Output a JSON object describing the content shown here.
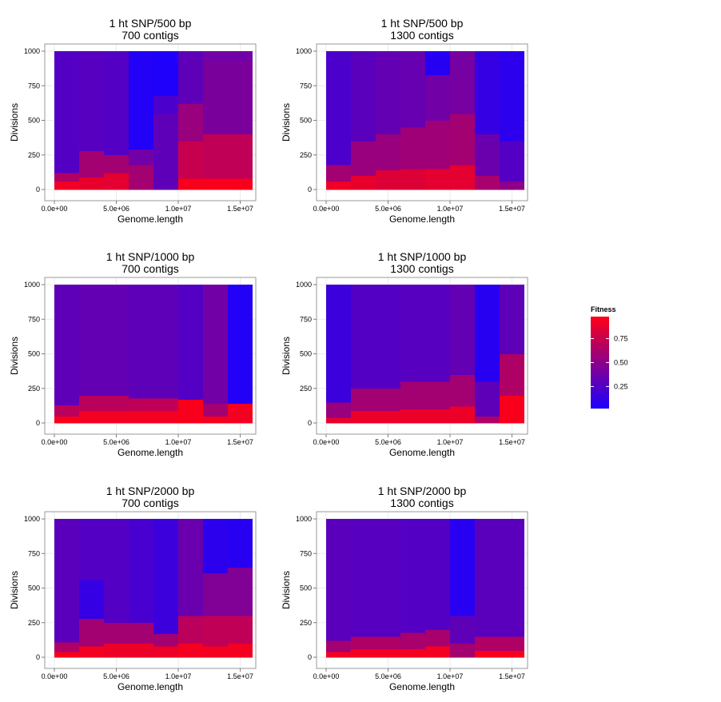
{
  "chart_data": [
    {
      "type": "heatmap",
      "title": [
        "1 ht SNP/500 bp",
        "700 contigs"
      ],
      "xlabel": "Genome.length",
      "ylabel": "Divisions",
      "xlim": [
        0,
        16000000
      ],
      "ylim": [
        0,
        1000
      ],
      "xticks": [
        0,
        5000000,
        10000000,
        15000000
      ],
      "xtick_labels": [
        "0.0e+00",
        "5.0e+06",
        "1.0e+07",
        "1.5e+07"
      ],
      "yticks": [
        0,
        250,
        500,
        750,
        1000
      ],
      "ytick_labels": [
        "0",
        "250",
        "500",
        "750",
        "1000"
      ],
      "columns": [
        {
          "x0": 0,
          "x1": 2000000,
          "segments": [
            [
              0,
              60,
              0.93
            ],
            [
              60,
              120,
              0.65
            ],
            [
              120,
              1000,
              0.25
            ]
          ]
        },
        {
          "x0": 2000000,
          "x1": 4000000,
          "segments": [
            [
              0,
              90,
              0.9
            ],
            [
              90,
              280,
              0.6
            ],
            [
              280,
              1000,
              0.27
            ]
          ]
        },
        {
          "x0": 4000000,
          "x1": 6000000,
          "segments": [
            [
              0,
              120,
              0.88
            ],
            [
              120,
              250,
              0.6
            ],
            [
              250,
              1000,
              0.25
            ]
          ]
        },
        {
          "x0": 6000000,
          "x1": 8000000,
          "segments": [
            [
              0,
              180,
              0.6
            ],
            [
              180,
              290,
              0.38
            ],
            [
              290,
              1000,
              0.04
            ]
          ]
        },
        {
          "x0": 8000000,
          "x1": 10000000,
          "segments": [
            [
              0,
              550,
              0.3
            ],
            [
              550,
              680,
              0.22
            ],
            [
              680,
              1000,
              0.02
            ]
          ]
        },
        {
          "x0": 10000000,
          "x1": 12000000,
          "segments": [
            [
              0,
              80,
              0.97
            ],
            [
              80,
              350,
              0.75
            ],
            [
              350,
              620,
              0.55
            ],
            [
              620,
              1000,
              0.3
            ]
          ]
        },
        {
          "x0": 12000000,
          "x1": 16000000,
          "segments": [
            [
              0,
              80,
              0.97
            ],
            [
              80,
              400,
              0.72
            ],
            [
              400,
              930,
              0.42
            ],
            [
              930,
              1000,
              0.38
            ]
          ]
        }
      ]
    },
    {
      "type": "heatmap",
      "title": [
        "1 ht SNP/500 bp",
        "1300 contigs"
      ],
      "xlabel": "Genome.length",
      "ylabel": "Divisions",
      "xlim": [
        0,
        16000000
      ],
      "ylim": [
        0,
        1000
      ],
      "xticks": [
        0,
        5000000,
        10000000,
        15000000
      ],
      "xtick_labels": [
        "0.0e+00",
        "5.0e+06",
        "1.0e+07",
        "1.5e+07"
      ],
      "yticks": [
        0,
        250,
        500,
        750,
        1000
      ],
      "ytick_labels": [
        "0",
        "250",
        "500",
        "750",
        "1000"
      ],
      "columns": [
        {
          "x0": 0,
          "x1": 2000000,
          "segments": [
            [
              0,
              60,
              0.93
            ],
            [
              60,
              180,
              0.6
            ],
            [
              180,
              1000,
              0.22
            ]
          ]
        },
        {
          "x0": 2000000,
          "x1": 4000000,
          "segments": [
            [
              0,
              100,
              0.9
            ],
            [
              100,
              350,
              0.55
            ],
            [
              350,
              1000,
              0.28
            ]
          ]
        },
        {
          "x0": 4000000,
          "x1": 6000000,
          "segments": [
            [
              0,
              140,
              0.85
            ],
            [
              140,
              400,
              0.55
            ],
            [
              400,
              1000,
              0.32
            ]
          ]
        },
        {
          "x0": 6000000,
          "x1": 8000000,
          "segments": [
            [
              0,
              150,
              0.85
            ],
            [
              150,
              450,
              0.58
            ],
            [
              450,
              1000,
              0.33
            ]
          ]
        },
        {
          "x0": 8000000,
          "x1": 10000000,
          "segments": [
            [
              0,
              150,
              0.88
            ],
            [
              150,
              500,
              0.58
            ],
            [
              500,
              830,
              0.38
            ],
            [
              830,
              1000,
              0.05
            ]
          ]
        },
        {
          "x0": 10000000,
          "x1": 12000000,
          "segments": [
            [
              0,
              180,
              0.88
            ],
            [
              180,
              550,
              0.6
            ],
            [
              550,
              1000,
              0.4
            ]
          ]
        },
        {
          "x0": 12000000,
          "x1": 14000000,
          "segments": [
            [
              0,
              100,
              0.62
            ],
            [
              100,
              400,
              0.35
            ],
            [
              400,
              1000,
              0.12
            ]
          ]
        },
        {
          "x0": 14000000,
          "x1": 16000000,
          "segments": [
            [
              0,
              60,
              0.5
            ],
            [
              60,
              350,
              0.25
            ],
            [
              350,
              1000,
              0.08
            ]
          ]
        }
      ]
    },
    {
      "type": "heatmap",
      "title": [
        "1 ht SNP/1000 bp",
        "700 contigs"
      ],
      "xlabel": "Genome.length",
      "ylabel": "Divisions",
      "xlim": [
        0,
        16000000
      ],
      "ylim": [
        0,
        1000
      ],
      "xticks": [
        0,
        5000000,
        10000000,
        15000000
      ],
      "xtick_labels": [
        "0.0e+00",
        "5.0e+06",
        "1.0e+07",
        "1.5e+07"
      ],
      "yticks": [
        0,
        250,
        500,
        750,
        1000
      ],
      "ytick_labels": [
        "0",
        "250",
        "500",
        "750",
        "1000"
      ],
      "columns": [
        {
          "x0": 0,
          "x1": 2000000,
          "segments": [
            [
              0,
              50,
              0.97
            ],
            [
              50,
              130,
              0.7
            ],
            [
              130,
              1000,
              0.3
            ]
          ]
        },
        {
          "x0": 2000000,
          "x1": 6000000,
          "segments": [
            [
              0,
              90,
              0.95
            ],
            [
              90,
              200,
              0.7
            ],
            [
              200,
              1000,
              0.32
            ]
          ]
        },
        {
          "x0": 6000000,
          "x1": 10000000,
          "segments": [
            [
              0,
              90,
              0.95
            ],
            [
              90,
              180,
              0.72
            ],
            [
              180,
              1000,
              0.3
            ]
          ]
        },
        {
          "x0": 10000000,
          "x1": 12000000,
          "segments": [
            [
              0,
              170,
              0.97
            ],
            [
              170,
              1000,
              0.25
            ]
          ]
        },
        {
          "x0": 12000000,
          "x1": 14000000,
          "segments": [
            [
              0,
              50,
              0.97
            ],
            [
              50,
              140,
              0.6
            ],
            [
              140,
              1000,
              0.38
            ]
          ]
        },
        {
          "x0": 14000000,
          "x1": 16000000,
          "segments": [
            [
              0,
              140,
              0.95
            ],
            [
              140,
              1000,
              0.04
            ]
          ]
        }
      ]
    },
    {
      "type": "heatmap",
      "title": [
        "1 ht SNP/1000 bp",
        "1300 contigs"
      ],
      "xlabel": "Genome.length",
      "ylabel": "Divisions",
      "xlim": [
        0,
        16000000
      ],
      "ylim": [
        0,
        1000
      ],
      "xticks": [
        0,
        5000000,
        10000000,
        15000000
      ],
      "xtick_labels": [
        "0.0e+00",
        "5.0e+06",
        "1.0e+07",
        "1.5e+07"
      ],
      "yticks": [
        0,
        250,
        500,
        750,
        1000
      ],
      "ytick_labels": [
        "0",
        "250",
        "500",
        "750",
        "1000"
      ],
      "columns": [
        {
          "x0": 0,
          "x1": 2000000,
          "segments": [
            [
              0,
              40,
              0.9
            ],
            [
              40,
              150,
              0.55
            ],
            [
              150,
              1000,
              0.15
            ]
          ]
        },
        {
          "x0": 2000000,
          "x1": 6000000,
          "segments": [
            [
              0,
              90,
              0.92
            ],
            [
              90,
              250,
              0.6
            ],
            [
              250,
              1000,
              0.25
            ]
          ]
        },
        {
          "x0": 6000000,
          "x1": 10000000,
          "segments": [
            [
              0,
              100,
              0.92
            ],
            [
              100,
              300,
              0.6
            ],
            [
              300,
              1000,
              0.27
            ]
          ]
        },
        {
          "x0": 10000000,
          "x1": 12000000,
          "segments": [
            [
              0,
              120,
              0.92
            ],
            [
              120,
              350,
              0.6
            ],
            [
              350,
              1000,
              0.32
            ]
          ]
        },
        {
          "x0": 12000000,
          "x1": 14000000,
          "segments": [
            [
              0,
              50,
              0.65
            ],
            [
              50,
              300,
              0.3
            ],
            [
              300,
              1000,
              0.06
            ]
          ]
        },
        {
          "x0": 14000000,
          "x1": 16000000,
          "segments": [
            [
              0,
              200,
              0.97
            ],
            [
              200,
              500,
              0.65
            ],
            [
              500,
              1000,
              0.3
            ]
          ]
        }
      ]
    },
    {
      "type": "heatmap",
      "title": [
        "1 ht SNP/2000 bp",
        "700 contigs"
      ],
      "xlabel": "Genome.length",
      "ylabel": "Divisions",
      "xlim": [
        0,
        16000000
      ],
      "ylim": [
        0,
        1000
      ],
      "xticks": [
        0,
        5000000,
        10000000,
        15000000
      ],
      "xtick_labels": [
        "0.0e+00",
        "5.0e+06",
        "1.0e+07",
        "1.5e+07"
      ],
      "yticks": [
        0,
        250,
        500,
        750,
        1000
      ],
      "ytick_labels": [
        "0",
        "250",
        "500",
        "750",
        "1000"
      ],
      "columns": [
        {
          "x0": 0,
          "x1": 2000000,
          "segments": [
            [
              0,
              40,
              0.97
            ],
            [
              40,
              110,
              0.65
            ],
            [
              110,
              1000,
              0.28
            ]
          ]
        },
        {
          "x0": 2000000,
          "x1": 4000000,
          "segments": [
            [
              0,
              80,
              0.95
            ],
            [
              80,
              280,
              0.6
            ],
            [
              280,
              560,
              0.12
            ],
            [
              560,
              1000,
              0.25
            ]
          ]
        },
        {
          "x0": 4000000,
          "x1": 6000000,
          "segments": [
            [
              0,
              100,
              0.92
            ],
            [
              100,
              250,
              0.6
            ],
            [
              250,
              1000,
              0.25
            ]
          ]
        },
        {
          "x0": 6000000,
          "x1": 8000000,
          "segments": [
            [
              0,
              100,
              0.92
            ],
            [
              100,
              250,
              0.6
            ],
            [
              250,
              1000,
              0.2
            ]
          ]
        },
        {
          "x0": 8000000,
          "x1": 10000000,
          "segments": [
            [
              0,
              80,
              0.92
            ],
            [
              80,
              170,
              0.6
            ],
            [
              170,
              1000,
              0.15
            ]
          ]
        },
        {
          "x0": 10000000,
          "x1": 12000000,
          "segments": [
            [
              0,
              100,
              0.95
            ],
            [
              100,
              300,
              0.7
            ],
            [
              300,
              1000,
              0.35
            ]
          ]
        },
        {
          "x0": 12000000,
          "x1": 14000000,
          "segments": [
            [
              0,
              80,
              0.95
            ],
            [
              80,
              300,
              0.72
            ],
            [
              300,
              610,
              0.45
            ],
            [
              610,
              1000,
              0.08
            ]
          ]
        },
        {
          "x0": 14000000,
          "x1": 16000000,
          "segments": [
            [
              0,
              100,
              0.95
            ],
            [
              100,
              300,
              0.72
            ],
            [
              300,
              650,
              0.45
            ],
            [
              650,
              1000,
              0.06
            ]
          ]
        }
      ]
    },
    {
      "type": "heatmap",
      "title": [
        "1 ht SNP/2000 bp",
        "1300 contigs"
      ],
      "xlabel": "Genome.length",
      "ylabel": "Divisions",
      "xlim": [
        0,
        16000000
      ],
      "ylim": [
        0,
        1000
      ],
      "xticks": [
        0,
        5000000,
        10000000,
        15000000
      ],
      "xtick_labels": [
        "0.0e+00",
        "5.0e+06",
        "1.0e+07",
        "1.5e+07"
      ],
      "yticks": [
        0,
        250,
        500,
        750,
        1000
      ],
      "ytick_labels": [
        "0",
        "250",
        "500",
        "750",
        "1000"
      ],
      "columns": [
        {
          "x0": 0,
          "x1": 2000000,
          "segments": [
            [
              0,
              40,
              0.95
            ],
            [
              40,
              120,
              0.6
            ],
            [
              120,
              1000,
              0.28
            ]
          ]
        },
        {
          "x0": 2000000,
          "x1": 6000000,
          "segments": [
            [
              0,
              60,
              0.95
            ],
            [
              60,
              150,
              0.65
            ],
            [
              150,
              1000,
              0.27
            ]
          ]
        },
        {
          "x0": 6000000,
          "x1": 8000000,
          "segments": [
            [
              0,
              60,
              0.95
            ],
            [
              60,
              180,
              0.62
            ],
            [
              180,
              1000,
              0.25
            ]
          ]
        },
        {
          "x0": 8000000,
          "x1": 10000000,
          "segments": [
            [
              0,
              80,
              0.95
            ],
            [
              80,
              200,
              0.62
            ],
            [
              200,
              1000,
              0.25
            ]
          ]
        },
        {
          "x0": 10000000,
          "x1": 12000000,
          "segments": [
            [
              0,
              100,
              0.6
            ],
            [
              100,
              300,
              0.3
            ],
            [
              300,
              1000,
              0.06
            ]
          ]
        },
        {
          "x0": 12000000,
          "x1": 16000000,
          "segments": [
            [
              0,
              50,
              0.97
            ],
            [
              50,
              150,
              0.65
            ],
            [
              150,
              1000,
              0.28
            ]
          ]
        }
      ]
    }
  ],
  "legend": {
    "title": "Fitness",
    "ticks": [
      0.25,
      0.5,
      0.75
    ],
    "tick_labels": [
      "0.25",
      "0.50",
      "0.75"
    ],
    "range": [
      0.02,
      0.98
    ],
    "low_color": "#1a00ff",
    "high_color": "#ff0014"
  },
  "colors": {
    "panel_background": "#ffffff",
    "panel_border": "#7f7f7f",
    "grid": "#ebebeb",
    "tick": "#7f7f7f"
  }
}
